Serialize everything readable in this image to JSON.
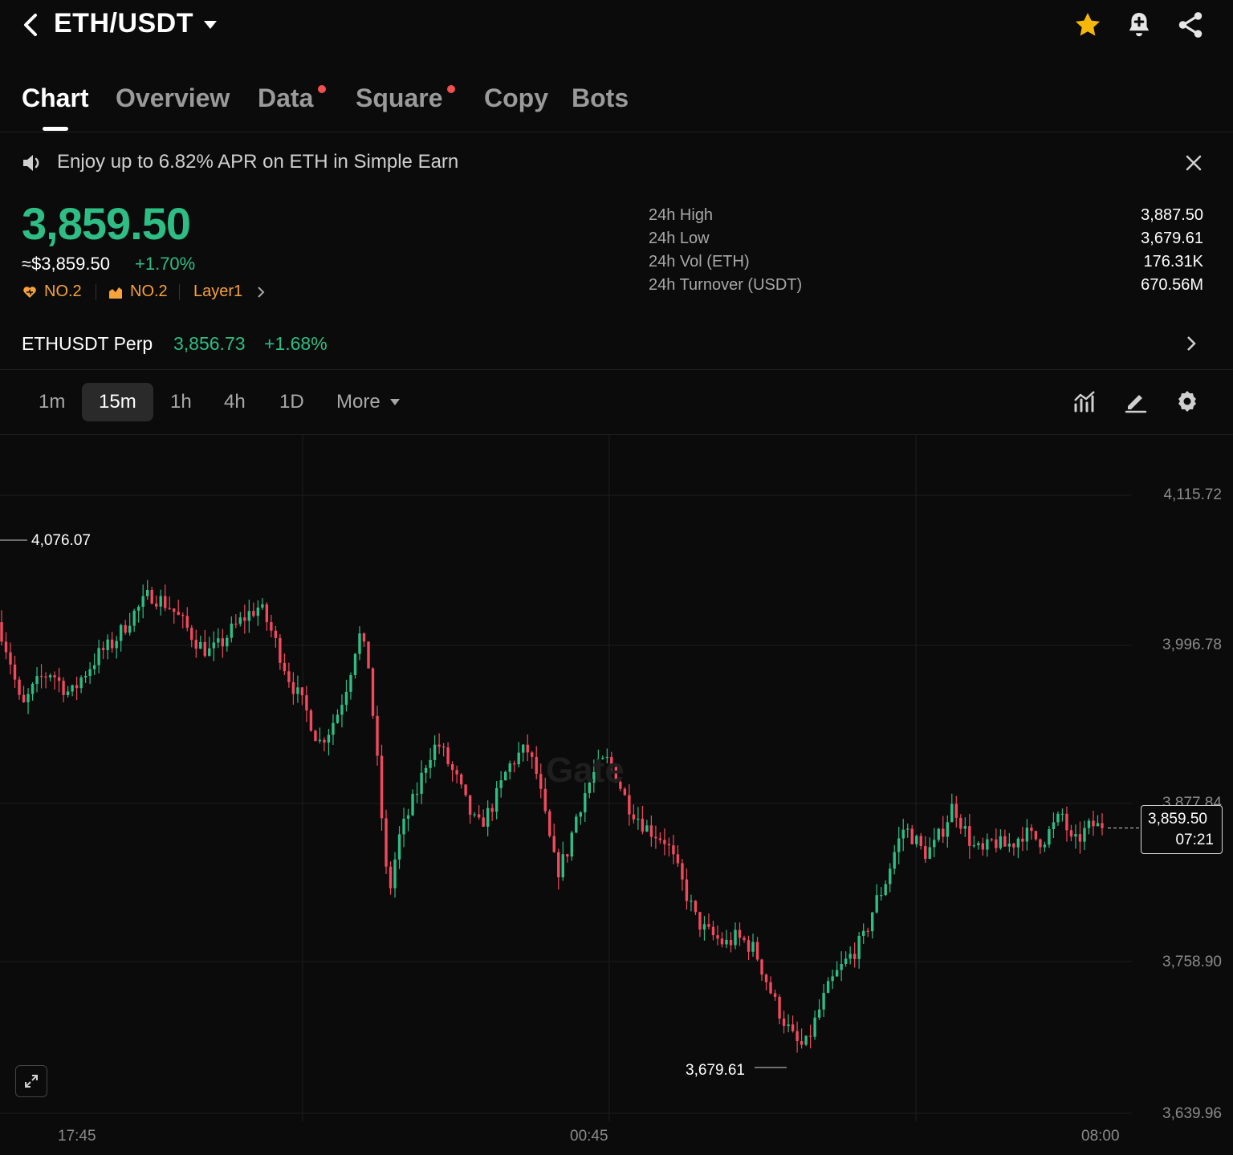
{
  "header": {
    "pair": "ETH/USDT",
    "icons": [
      "back-icon",
      "caret-down-icon",
      "star-icon",
      "bell-icon",
      "share-icon"
    ]
  },
  "tabs": [
    {
      "label": "Chart",
      "active": true,
      "dot": false
    },
    {
      "label": "Overview",
      "active": false,
      "dot": false
    },
    {
      "label": "Data",
      "active": false,
      "dot": true
    },
    {
      "label": "Square",
      "active": false,
      "dot": true
    },
    {
      "label": "Copy",
      "active": false,
      "dot": false
    },
    {
      "label": "Bots",
      "active": false,
      "dot": false
    }
  ],
  "banner": {
    "text": "Enjoy up to 6.82% APR on ETH in Simple Earn"
  },
  "price": {
    "last": "3,859.50",
    "usd": "≈$3,859.50",
    "change": "+1.70%",
    "tags": [
      "NO.2",
      "NO.2",
      "Layer1"
    ]
  },
  "stats": [
    {
      "label": "24h High",
      "value": "3,887.50"
    },
    {
      "label": "24h Low",
      "value": "3,679.61"
    },
    {
      "label": "24h Vol (ETH)",
      "value": "176.31K"
    },
    {
      "label": "24h Turnover (USDT)",
      "value": "670.56M"
    }
  ],
  "perp": {
    "name": "ETHUSDT Perp",
    "price": "3,856.73",
    "change": "+1.68%"
  },
  "intervals": [
    "1m",
    "15m",
    "1h",
    "4h",
    "1D",
    "More"
  ],
  "active_interval": "15m",
  "colors": {
    "up": "#2ebd85",
    "down": "#f2495e",
    "accent": "#f7a23b",
    "star": "#f5b80a"
  },
  "chart_data": {
    "type": "candlestick",
    "y_ticks": [
      "4,115.72",
      "3,996.78",
      "3,877.84",
      "3,758.90",
      "3,639.96"
    ],
    "x_ticks": [
      "17:45",
      "00:45",
      "08:00"
    ],
    "ylim": [
      3639.96,
      4115.72
    ],
    "high_marker": "4,076.07",
    "low_marker": "3,679.61",
    "current_price": "3,859.50",
    "countdown": "07:21",
    "watermark": "Gate",
    "close_series": [
      4010,
      3985,
      3950,
      3965,
      3975,
      3980,
      3970,
      3962,
      3975,
      3985,
      3995,
      4000,
      4010,
      4022,
      4030,
      4040,
      4035,
      4030,
      4020,
      4010,
      4000,
      3995,
      4000,
      4010,
      4018,
      4025,
      4030,
      4015,
      3995,
      3975,
      3960,
      3945,
      3925,
      3935,
      3950,
      3975,
      4010,
      3985,
      3900,
      3805,
      3850,
      3870,
      3890,
      3915,
      3925,
      3910,
      3895,
      3875,
      3860,
      3870,
      3885,
      3905,
      3915,
      3920,
      3900,
      3860,
      3825,
      3840,
      3870,
      3890,
      3905,
      3912,
      3900,
      3880,
      3870,
      3860,
      3855,
      3850,
      3830,
      3810,
      3790,
      3780,
      3775,
      3770,
      3775,
      3772,
      3765,
      3745,
      3725,
      3710,
      3695,
      3690,
      3710,
      3730,
      3745,
      3755,
      3765,
      3775,
      3800,
      3815,
      3840,
      3860,
      3852,
      3840,
      3845,
      3860,
      3878,
      3860,
      3845,
      3840,
      3850,
      3845,
      3848,
      3856,
      3852,
      3850,
      3860,
      3870,
      3845,
      3855,
      3862,
      3859.5
    ]
  }
}
